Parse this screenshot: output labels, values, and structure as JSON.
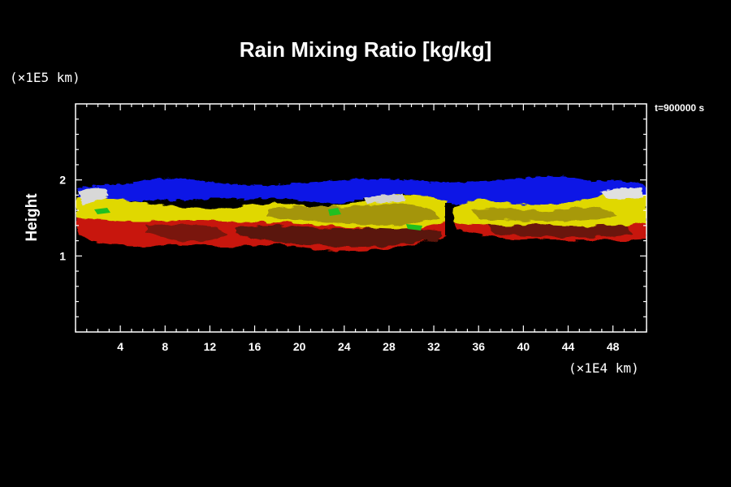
{
  "chart_data": {
    "type": "heatmap",
    "title": "Rain Mixing Ratio [kg/kg]",
    "ylabel": "Height",
    "xlabel": "",
    "y_unit": "(×1E5 km)",
    "x_unit": "(×1E4 km)",
    "time_label": "t=900000 s",
    "xlim": [
      0,
      51
    ],
    "ylim": [
      0,
      3
    ],
    "x_ticks": [
      4,
      8,
      12,
      16,
      20,
      24,
      28,
      32,
      36,
      40,
      44,
      48
    ],
    "y_ticks": [
      1,
      2
    ],
    "grid": false,
    "colors": {
      "background": "#000000",
      "top_layer": "#0a14e6",
      "upper_band": "#e0d800",
      "mid_band": "#c81808",
      "core": "#5a1208",
      "highlight": "#d8d8d8",
      "edge": "#20c020"
    },
    "layers": [
      {
        "name": "blue",
        "x": [
          0.2,
          51
        ],
        "y": [
          1.8,
          2.0
        ]
      },
      {
        "name": "yellow",
        "x": [
          0.2,
          51
        ],
        "y": [
          1.4,
          1.75
        ]
      },
      {
        "name": "red",
        "x": [
          1,
          51
        ],
        "y": [
          1.1,
          1.4
        ]
      }
    ]
  }
}
